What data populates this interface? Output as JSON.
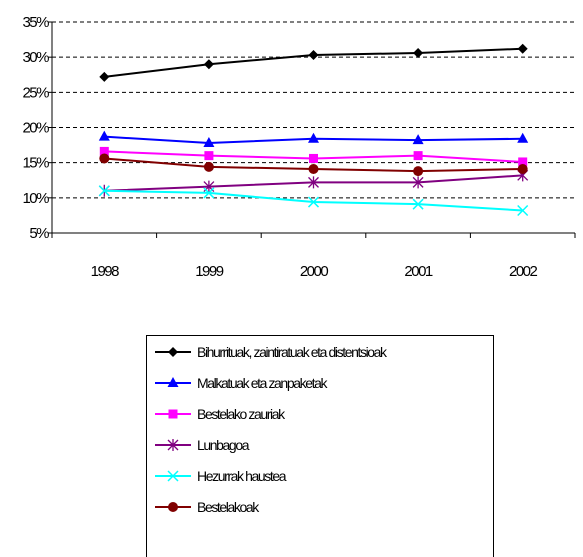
{
  "chart_data": {
    "type": "line",
    "categories": [
      "1998",
      "1999",
      "2000",
      "2001",
      "2002"
    ],
    "y_ticks": [
      "5%",
      "10%",
      "15%",
      "20%",
      "25%",
      "30%",
      "35%"
    ],
    "ylim": [
      5,
      35
    ],
    "y_unit": "%",
    "grid": "horizontal dashed",
    "legend_position": "bottom",
    "series": [
      {
        "name": "Bihurrituak, zaintiratuak eta distentsioak",
        "color": "#000000",
        "marker": "diamond",
        "values": [
          27.2,
          29.0,
          30.3,
          30.6,
          31.2
        ]
      },
      {
        "name": "Malkatuak eta zanpaketak",
        "color": "#0000FF",
        "marker": "triangle",
        "values": [
          18.7,
          17.8,
          18.4,
          18.2,
          18.4
        ]
      },
      {
        "name": "Bestelako zauriak",
        "color": "#FF00FF",
        "marker": "square",
        "values": [
          16.6,
          16.0,
          15.6,
          16.0,
          15.1
        ]
      },
      {
        "name": "Lunbagoa",
        "color": "#800080",
        "marker": "star",
        "values": [
          11.0,
          11.6,
          12.2,
          12.2,
          13.2
        ]
      },
      {
        "name": "Hezurrak haustea",
        "color": "#00FFFF",
        "marker": "x",
        "values": [
          11.0,
          10.7,
          9.4,
          9.1,
          8.2
        ]
      },
      {
        "name": "Bestelakoak",
        "color": "#800000",
        "marker": "circle",
        "values": [
          15.6,
          14.4,
          14.1,
          13.8,
          14.1
        ]
      }
    ]
  }
}
